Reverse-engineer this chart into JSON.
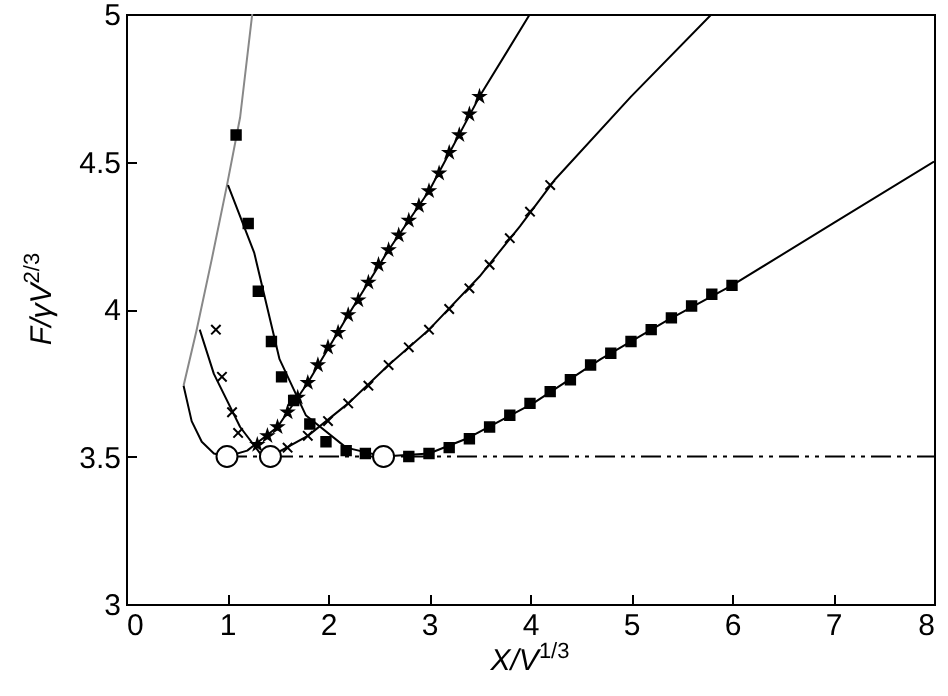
{
  "chart_data": {
    "type": "line",
    "xlabel": "X/V$^{1/3}$",
    "ylabel": "F/γV$^{2/3}$",
    "xlim": [
      0,
      8
    ],
    "ylim": [
      3,
      5
    ],
    "xticks": [
      0,
      1,
      2,
      3,
      4,
      5,
      6,
      7,
      8
    ],
    "yticks": [
      3,
      3.5,
      4,
      4.5,
      5
    ],
    "grid": false,
    "series": [
      {
        "type": "line",
        "color": "#888888",
        "marker": "none",
        "x": [
          0.57,
          0.7,
          0.85,
          1.0,
          1.13,
          1.25
        ],
        "values": [
          3.74,
          3.93,
          4.17,
          4.42,
          4.65,
          5.0
        ]
      },
      {
        "type": "line",
        "color": "#000000",
        "marker": "none",
        "x": [
          0.57,
          0.65,
          0.75,
          0.87,
          1.0,
          1.2,
          1.5,
          1.8,
          2.2,
          2.6,
          3.0,
          3.5,
          4.0
        ],
        "values": [
          3.74,
          3.62,
          3.55,
          3.51,
          3.5,
          3.52,
          3.6,
          3.75,
          3.98,
          4.2,
          4.4,
          4.72,
          5.0
        ]
      },
      {
        "type": "line",
        "color": "#000000",
        "marker": "none",
        "x": [
          0.73,
          0.87,
          1.13,
          1.33,
          1.43,
          1.8,
          2.2,
          2.6,
          3.0,
          3.5,
          3.9,
          4.25,
          5.0,
          5.8
        ],
        "values": [
          3.93,
          3.78,
          3.6,
          3.51,
          3.5,
          3.57,
          3.68,
          3.81,
          3.93,
          4.11,
          4.28,
          4.44,
          4.72,
          5.0
        ]
      },
      {
        "type": "line",
        "color": "#000000",
        "marker": "none",
        "x": [
          1.01,
          1.27,
          1.52,
          1.78,
          2.18,
          2.55,
          3.0,
          3.37,
          4.03,
          4.7,
          5.35,
          6.0,
          7.0,
          8.0
        ],
        "values": [
          4.42,
          4.19,
          3.83,
          3.64,
          3.53,
          3.5,
          3.51,
          3.56,
          3.68,
          3.83,
          3.96,
          4.08,
          4.29,
          4.5
        ]
      },
      {
        "type": "line",
        "color": "#000000",
        "marker": "none",
        "line_style": "dashed",
        "x": [
          1.0,
          8.0
        ],
        "values": [
          3.5,
          3.5
        ]
      },
      {
        "type": "scatter",
        "color": "#000000",
        "marker": "star",
        "x": [
          1.3,
          1.4,
          1.5,
          1.6,
          1.7,
          1.8,
          1.9,
          2.0,
          2.1,
          2.2,
          2.3,
          2.4,
          2.5,
          2.6,
          2.7,
          2.8,
          2.9,
          3.0,
          3.1,
          3.2,
          3.3,
          3.4,
          3.5
        ],
        "values": [
          3.54,
          3.57,
          3.6,
          3.65,
          3.7,
          3.75,
          3.81,
          3.87,
          3.92,
          3.98,
          4.03,
          4.09,
          4.15,
          4.2,
          4.25,
          4.3,
          4.35,
          4.4,
          4.46,
          4.53,
          4.59,
          4.66,
          4.72
        ]
      },
      {
        "type": "scatter",
        "color": "#000000",
        "marker": "cross",
        "x": [
          0.89,
          0.95,
          1.05,
          1.11,
          1.6,
          1.8,
          2.0,
          2.2,
          2.4,
          2.6,
          2.8,
          3.0,
          3.2,
          3.4,
          3.6,
          3.8,
          4.0,
          4.2
        ],
        "values": [
          3.93,
          3.77,
          3.65,
          3.58,
          3.53,
          3.57,
          3.62,
          3.68,
          3.74,
          3.81,
          3.87,
          3.93,
          4.0,
          4.07,
          4.15,
          4.24,
          4.33,
          4.42
        ]
      },
      {
        "type": "scatter",
        "color": "#000000",
        "marker": "square",
        "x": [
          1.09,
          1.21,
          1.31,
          1.44,
          1.54,
          1.66,
          1.82,
          1.98,
          2.18,
          2.37,
          2.8,
          3.0,
          3.2,
          3.4,
          3.6,
          3.8,
          4.0,
          4.2,
          4.4,
          4.6,
          4.8,
          5.0,
          5.2,
          5.4,
          5.6,
          5.8,
          6.0
        ],
        "values": [
          4.59,
          4.29,
          4.06,
          3.89,
          3.77,
          3.69,
          3.61,
          3.55,
          3.52,
          3.51,
          3.5,
          3.51,
          3.53,
          3.56,
          3.6,
          3.64,
          3.68,
          3.72,
          3.76,
          3.81,
          3.85,
          3.89,
          3.93,
          3.97,
          4.01,
          4.05,
          4.08
        ]
      },
      {
        "type": "scatter",
        "color": "#000000",
        "marker": "circle",
        "x": [
          1.0,
          1.43,
          2.55
        ],
        "values": [
          3.5,
          3.5,
          3.5
        ]
      }
    ]
  }
}
